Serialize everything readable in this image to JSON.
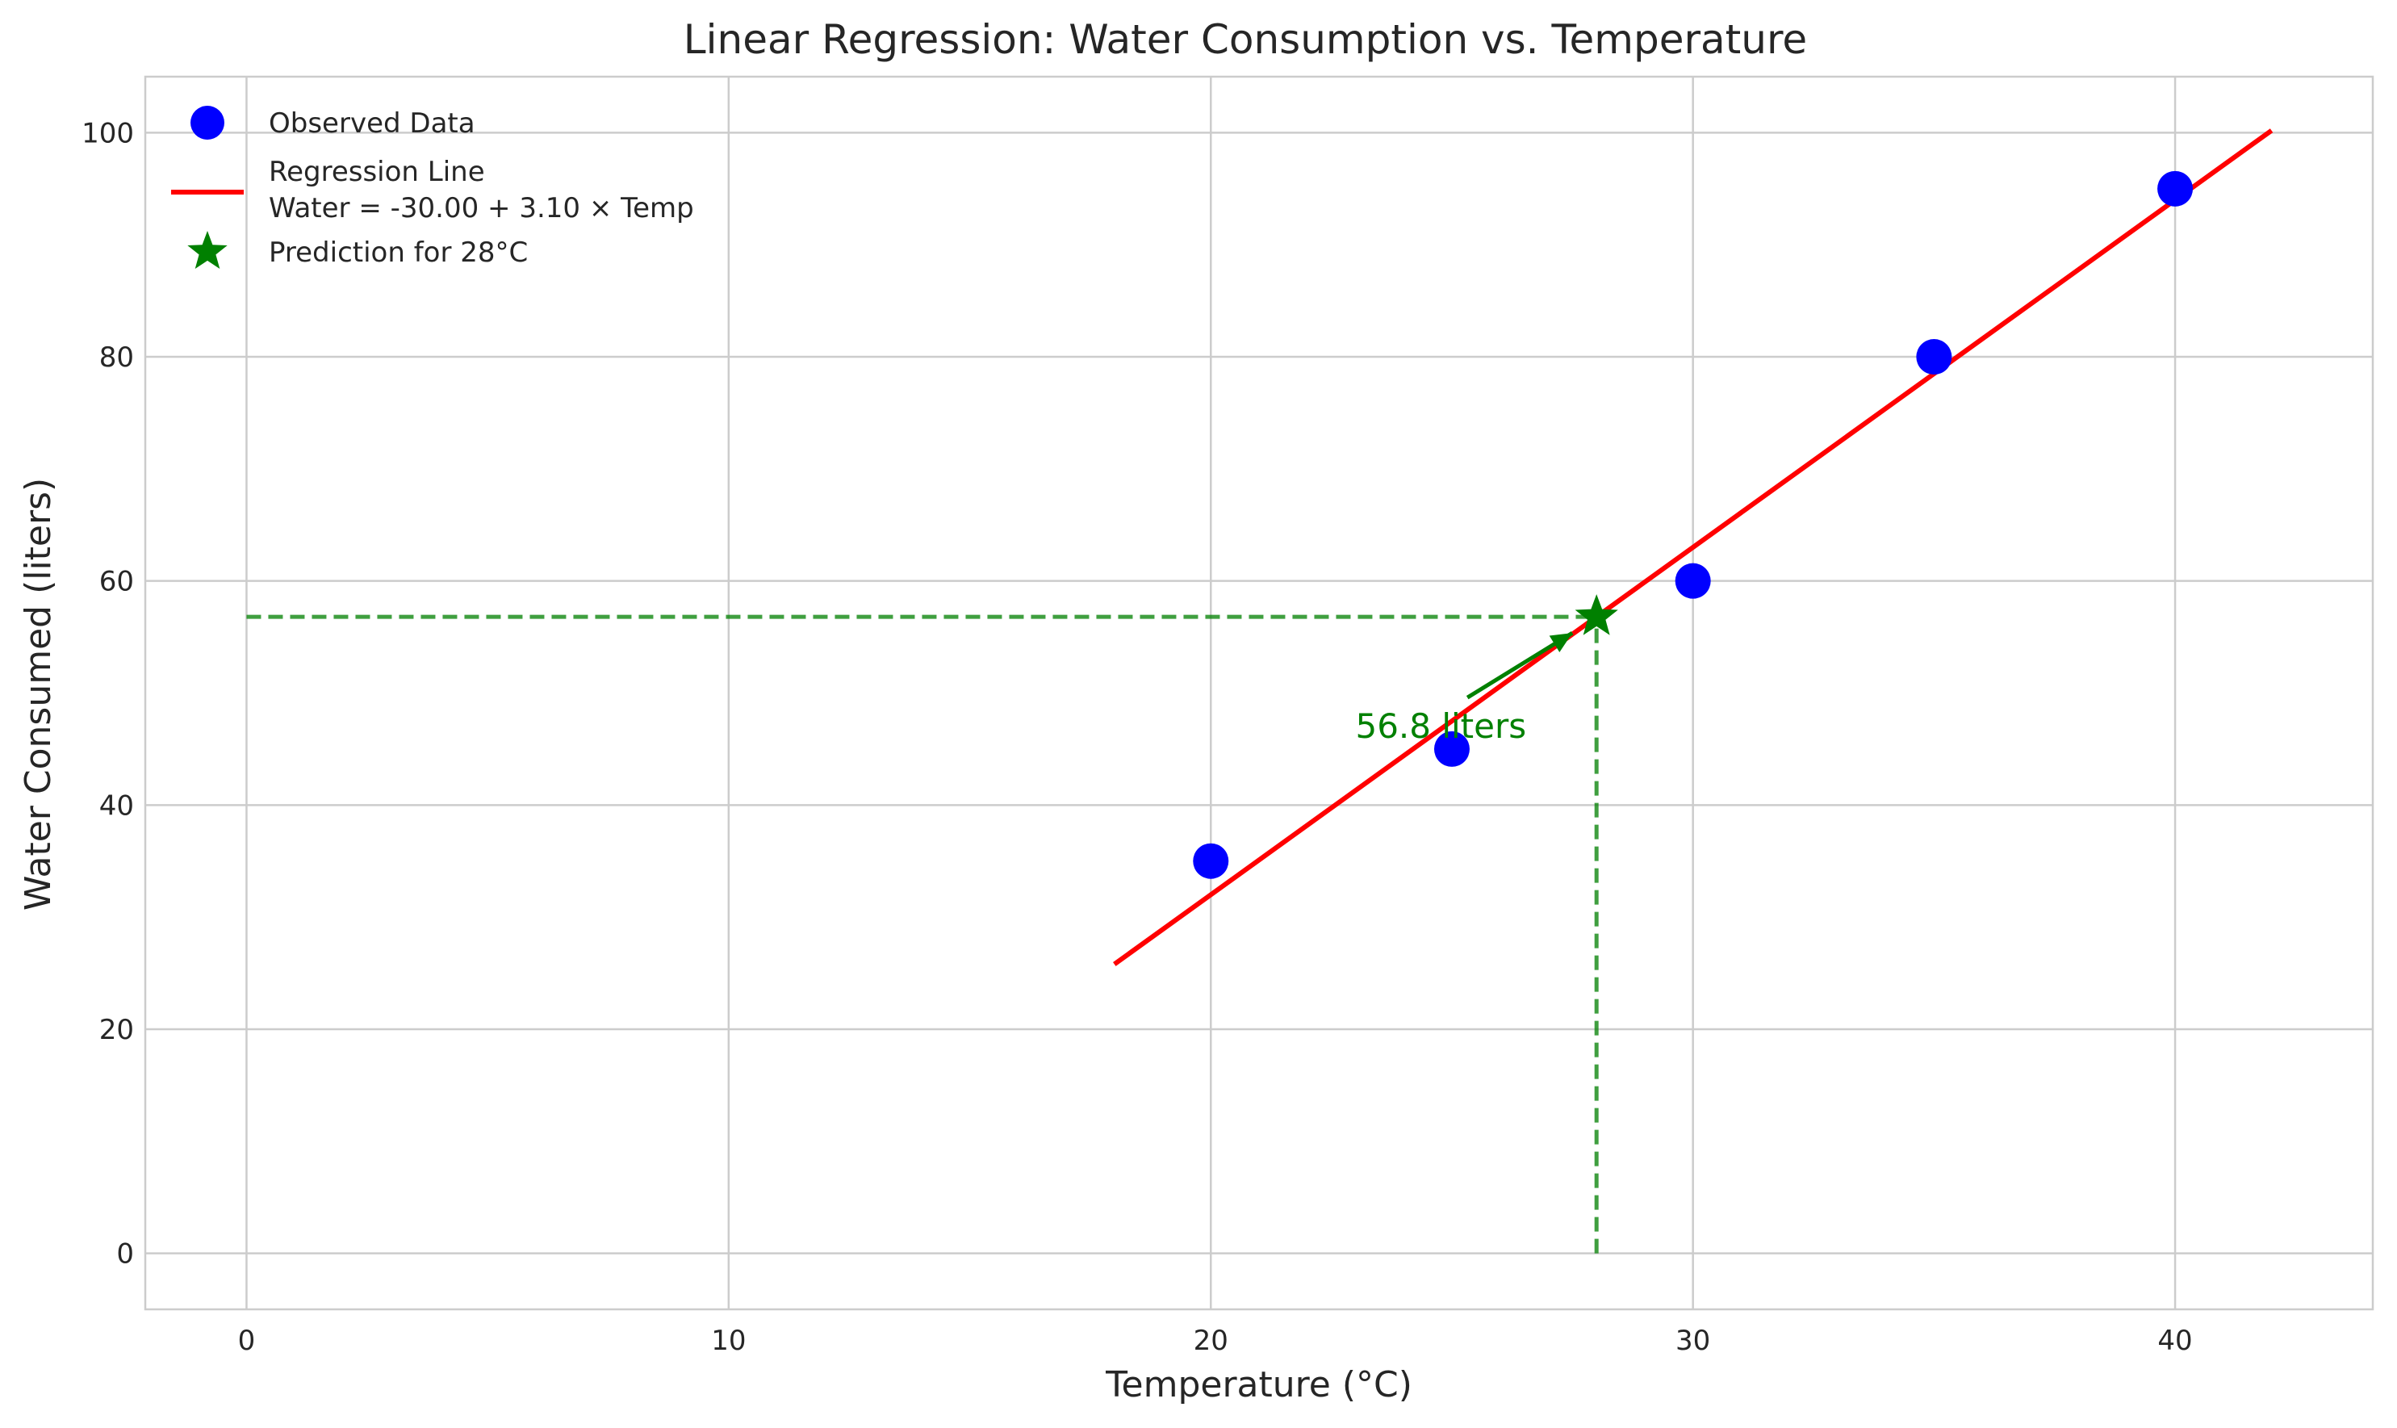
{
  "chart_data": {
    "type": "scatter",
    "title": "Linear Regression: Water Consumption vs. Temperature",
    "xlabel": "Temperature (°C)",
    "ylabel": "Water Consumed (liters)",
    "xlim": [
      -2.1,
      44.1
    ],
    "ylim": [
      -5,
      105
    ],
    "xticks": [
      0,
      10,
      20,
      30,
      40
    ],
    "yticks": [
      0,
      20,
      40,
      60,
      80,
      100
    ],
    "grid": true,
    "legend_position": "top-left",
    "series": [
      {
        "name": "Observed Data",
        "kind": "scatter",
        "color": "#0000ff",
        "x": [
          20,
          25,
          30,
          35,
          40
        ],
        "y": [
          35,
          45,
          60,
          80,
          95
        ]
      },
      {
        "name": "Regression Line\nWater = -30.00 + 3.10 × Temp",
        "kind": "line",
        "color": "#ff0000",
        "intercept": -30.0,
        "slope": 3.1,
        "x_range": [
          18,
          42
        ]
      },
      {
        "name": "Prediction for 28°C",
        "kind": "star",
        "color": "#008000",
        "x": [
          28
        ],
        "y": [
          56.8
        ]
      }
    ],
    "annotation": {
      "text": "56.8 liters",
      "color": "#008000",
      "point": [
        28,
        56.8
      ],
      "text_pos": [
        23,
        47
      ]
    },
    "guide_lines": {
      "color": "#008000",
      "x": 28,
      "y": 56.8
    }
  }
}
